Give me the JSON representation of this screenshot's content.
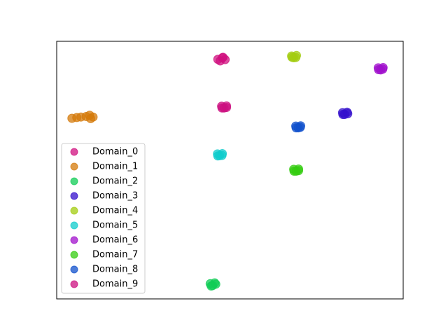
{
  "chart_data": {
    "type": "scatter",
    "xlim": [
      0,
      100
    ],
    "ylim": [
      0,
      100
    ],
    "legend": "lower left",
    "series": [
      {
        "name": "Domain_0",
        "color": "#d0107f",
        "x": [
          46.5,
          48.0,
          47.2,
          48.6,
          47.8
        ],
        "values": [
          93.0,
          93.8,
          92.4,
          92.9,
          93.6
        ]
      },
      {
        "name": "Domain_1",
        "color": "#d47a0a",
        "x": [
          4.4,
          5.8,
          7.0,
          8.5,
          9.5,
          10.5,
          9.8
        ],
        "values": [
          70.1,
          70.4,
          70.6,
          70.8,
          71.3,
          70.6,
          70.0
        ]
      },
      {
        "name": "Domain_2",
        "color": "#10cc55",
        "x": [
          44.3,
          45.6,
          45.0,
          45.9,
          44.6
        ],
        "values": [
          5.9,
          6.2,
          5.2,
          5.7,
          5.0
        ]
      },
      {
        "name": "Domain_3",
        "color": "#3410cc",
        "x": [
          82.5,
          83.8,
          83.1,
          84.0,
          82.6
        ],
        "values": [
          72.3,
          72.5,
          71.6,
          71.9,
          71.6
        ]
      },
      {
        "name": "Domain_4",
        "color": "#a3cc10",
        "x": [
          67.8,
          69.2,
          68.4,
          69.0,
          67.9
        ],
        "values": [
          94.3,
          94.5,
          93.6,
          93.7,
          93.8
        ]
      },
      {
        "name": "Domain_5",
        "color": "#10cccc",
        "x": [
          46.4,
          47.8,
          47.0,
          47.7,
          46.5
        ],
        "values": [
          56.3,
          56.4,
          55.6,
          55.7,
          55.5
        ]
      },
      {
        "name": "Domain_6",
        "color": "#a010cc",
        "x": [
          92.8,
          94.2,
          93.5,
          94.1,
          92.9
        ],
        "values": [
          89.7,
          89.8,
          88.9,
          89.2,
          89.0
        ]
      },
      {
        "name": "Domain_7",
        "color": "#34cc10",
        "x": [
          68.4,
          69.8,
          69.1,
          69.8,
          68.5
        ],
        "values": [
          50.3,
          50.4,
          49.6,
          49.8,
          49.6
        ]
      },
      {
        "name": "Domain_8",
        "color": "#1050cc",
        "x": [
          69.0,
          70.4,
          69.7,
          70.3,
          69.1
        ],
        "values": [
          67.1,
          67.2,
          66.4,
          66.6,
          66.4
        ]
      },
      {
        "name": "Domain_9",
        "color": "#cc1080",
        "x": [
          47.6,
          49.0,
          48.3,
          49.0,
          47.7
        ],
        "values": [
          74.8,
          74.9,
          74.1,
          74.3,
          74.1
        ]
      }
    ]
  }
}
